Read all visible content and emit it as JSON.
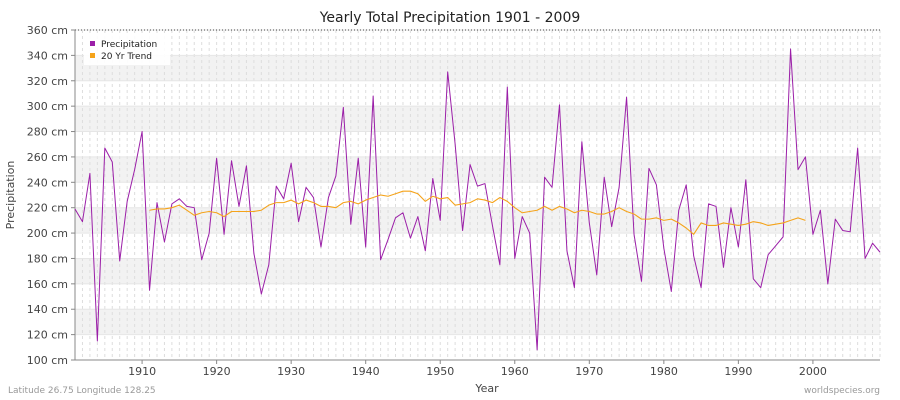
{
  "chart_data": {
    "type": "line",
    "title": "Yearly Total Precipitation 1901 - 2009",
    "xlabel": "Year",
    "ylabel": "Precipitation",
    "xlim": [
      1901,
      2009
    ],
    "ylim": [
      100,
      360
    ],
    "x_ticks": [
      1910,
      1920,
      1930,
      1940,
      1950,
      1960,
      1970,
      1980,
      1990,
      2000
    ],
    "y_ticks": [
      "100 cm",
      "120 cm",
      "140 cm",
      "160 cm",
      "180 cm",
      "200 cm",
      "220 cm",
      "240 cm",
      "260 cm",
      "280 cm",
      "300 cm",
      "320 cm",
      "340 cm",
      "360 cm"
    ],
    "y_tick_values": [
      100,
      120,
      140,
      160,
      180,
      200,
      220,
      240,
      260,
      280,
      300,
      320,
      340,
      360
    ],
    "grid": true,
    "legend_position": "top-left",
    "legend": [
      "Precipitation",
      "20 Yr Trend"
    ],
    "series": [
      {
        "name": "Precipitation",
        "color": "#9b1fa8",
        "x": [
          1901,
          1902,
          1903,
          1904,
          1905,
          1906,
          1907,
          1908,
          1909,
          1910,
          1911,
          1912,
          1913,
          1914,
          1915,
          1916,
          1917,
          1918,
          1919,
          1920,
          1921,
          1922,
          1923,
          1924,
          1925,
          1926,
          1927,
          1928,
          1929,
          1930,
          1931,
          1932,
          1933,
          1934,
          1935,
          1936,
          1937,
          1938,
          1939,
          1940,
          1941,
          1942,
          1943,
          1944,
          1945,
          1946,
          1947,
          1948,
          1949,
          1950,
          1951,
          1952,
          1953,
          1954,
          1955,
          1956,
          1957,
          1958,
          1959,
          1960,
          1961,
          1962,
          1963,
          1964,
          1965,
          1966,
          1967,
          1968,
          1969,
          1970,
          1971,
          1972,
          1973,
          1974,
          1975,
          1976,
          1977,
          1978,
          1979,
          1980,
          1981,
          1982,
          1983,
          1984,
          1985,
          1986,
          1987,
          1988,
          1989,
          1990,
          1991,
          1992,
          1993,
          1994,
          1995,
          1996,
          1997,
          1998,
          1999,
          2000,
          2001,
          2002,
          2003,
          2004,
          2005,
          2006,
          2007,
          2008,
          2009
        ],
        "values": [
          219,
          209,
          247,
          115,
          267,
          256,
          178,
          225,
          250,
          280,
          155,
          224,
          193,
          223,
          227,
          221,
          220,
          179,
          200,
          259,
          199,
          257,
          221,
          253,
          184,
          152,
          175,
          237,
          227,
          255,
          209,
          236,
          228,
          189,
          228,
          245,
          299,
          207,
          259,
          189,
          308,
          179,
          195,
          212,
          216,
          196,
          213,
          186,
          243,
          210,
          327,
          270,
          202,
          254,
          237,
          239,
          206,
          175,
          315,
          180,
          213,
          200,
          108,
          244,
          236,
          301,
          186,
          157,
          272,
          208,
          167,
          244,
          205,
          236,
          307,
          199,
          162,
          251,
          238,
          188,
          154,
          218,
          238,
          182,
          157,
          223,
          221,
          173,
          220,
          189,
          242,
          164,
          157,
          183,
          190,
          197,
          345,
          250,
          260,
          199,
          218,
          160,
          211,
          202,
          201,
          267,
          180,
          192,
          185
        ]
      },
      {
        "name": "20 Yr Trend",
        "color": "#f5a31a",
        "x": [
          1911,
          1912,
          1913,
          1914,
          1915,
          1916,
          1917,
          1918,
          1919,
          1920,
          1921,
          1922,
          1923,
          1924,
          1925,
          1926,
          1927,
          1928,
          1929,
          1930,
          1931,
          1932,
          1933,
          1934,
          1935,
          1936,
          1937,
          1938,
          1939,
          1940,
          1941,
          1942,
          1943,
          1944,
          1945,
          1946,
          1947,
          1948,
          1949,
          1950,
          1951,
          1952,
          1953,
          1954,
          1955,
          1956,
          1957,
          1958,
          1959,
          1960,
          1961,
          1962,
          1963,
          1964,
          1965,
          1966,
          1967,
          1968,
          1969,
          1970,
          1971,
          1972,
          1973,
          1974,
          1975,
          1976,
          1977,
          1978,
          1979,
          1980,
          1981,
          1982,
          1983,
          1984,
          1985,
          1986,
          1987,
          1988,
          1989,
          1990,
          1991,
          1992,
          1993,
          1994,
          1995,
          1996,
          1997,
          1998,
          1999
        ],
        "values": [
          218,
          219,
          219,
          220,
          222,
          218,
          214,
          216,
          217,
          216,
          213,
          217,
          217,
          217,
          217,
          218,
          222,
          224,
          224,
          226,
          223,
          226,
          224,
          221,
          221,
          220,
          224,
          225,
          223,
          226,
          228,
          230,
          229,
          231,
          233,
          233,
          231,
          225,
          229,
          227,
          228,
          222,
          223,
          224,
          227,
          226,
          224,
          228,
          225,
          220,
          216,
          217,
          218,
          221,
          218,
          221,
          219,
          216,
          218,
          217,
          215,
          215,
          217,
          220,
          217,
          215,
          211,
          211,
          212,
          210,
          211,
          208,
          204,
          199,
          208,
          206,
          206,
          208,
          207,
          206,
          207,
          209,
          208,
          206,
          207,
          208,
          210,
          212,
          210
        ]
      }
    ]
  },
  "footer": {
    "left": "Latitude 26.75 Longitude 128.25",
    "right": "worldspecies.org"
  }
}
